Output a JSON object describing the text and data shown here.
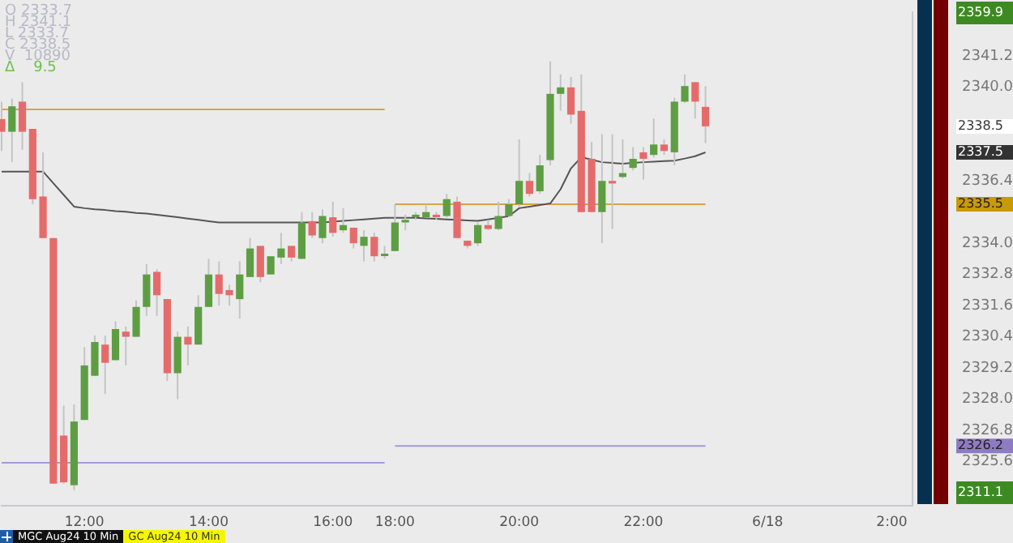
{
  "chart_data": {
    "type": "candlestick",
    "categories": [
      null,
      null,
      null,
      null,
      null,
      null,
      null,
      null,
      "12:00",
      null,
      null,
      null,
      null,
      null,
      null,
      null,
      null,
      null,
      null,
      null,
      "14:00",
      null,
      null,
      null,
      null,
      null,
      null,
      null,
      null,
      null,
      null,
      null,
      "16:00",
      null,
      null,
      null,
      null,
      null,
      "18:00",
      null,
      null,
      null,
      null,
      null,
      null,
      null,
      null,
      null,
      null,
      null,
      "20:00",
      null,
      null,
      null,
      null,
      null,
      null,
      null,
      null,
      null,
      null,
      null,
      "22:00",
      null,
      null,
      null,
      null,
      null,
      null,
      null,
      null,
      null,
      null,
      null,
      "6/18",
      null,
      null,
      null,
      null,
      null,
      null,
      null,
      null,
      null,
      null,
      null,
      "2:00",
      null,
      null
    ],
    "ohlc": [
      [
        2338.78,
        2339.45,
        2337.55,
        2338.29
      ],
      [
        2338.29,
        2339.57,
        2337.12,
        2339.27
      ],
      [
        2339.45,
        2340.2,
        2337.6,
        2338.29
      ],
      [
        2338.4,
        2338.4,
        2335.5,
        2335.7
      ],
      [
        2335.8,
        2337.5,
        2334.2,
        2334.2
      ],
      [
        2334.2,
        2334.2,
        2324.75,
        2324.75
      ],
      [
        2326.6,
        2327.75,
        2324.75,
        2324.8
      ],
      [
        2324.69,
        2327.8,
        2324.5,
        2327.14
      ],
      [
        2327.2,
        2330.0,
        2327.2,
        2329.3
      ],
      [
        2328.9,
        2330.45,
        2328.9,
        2330.2
      ],
      [
        2330.1,
        2330.45,
        2328.2,
        2329.4
      ],
      [
        2329.5,
        2331.0,
        2329.5,
        2330.7
      ],
      [
        2330.6,
        2330.8,
        2329.3,
        2330.4
      ],
      [
        2330.4,
        2331.8,
        2330.4,
        2331.55
      ],
      [
        2331.55,
        2333.2,
        2331.2,
        2332.8
      ],
      [
        2332.9,
        2333.0,
        2331.2,
        2332.0
      ],
      [
        2331.85,
        2331.85,
        2328.7,
        2329.0
      ],
      [
        2329.0,
        2330.6,
        2328.0,
        2330.4
      ],
      [
        2330.4,
        2330.8,
        2329.3,
        2330.1
      ],
      [
        2330.1,
        2332.0,
        2330.1,
        2331.55
      ],
      [
        2331.55,
        2333.4,
        2331.55,
        2332.8
      ],
      [
        2332.8,
        2333.3,
        2331.6,
        2332.05
      ],
      [
        2332.2,
        2332.4,
        2331.6,
        2332.0
      ],
      [
        2331.85,
        2333.3,
        2331.1,
        2332.8
      ],
      [
        2332.7,
        2334.2,
        2332.7,
        2333.8
      ],
      [
        2333.9,
        2333.9,
        2332.5,
        2332.7
      ],
      [
        2332.8,
        2333.5,
        2332.8,
        2333.5
      ],
      [
        2333.45,
        2334.4,
        2333.2,
        2333.8
      ],
      [
        2333.9,
        2333.9,
        2333.3,
        2333.45
      ],
      [
        2333.4,
        2335.2,
        2333.4,
        2334.8
      ],
      [
        2334.85,
        2335.2,
        2334.2,
        2334.3
      ],
      [
        2334.2,
        2335.3,
        2334.0,
        2335.05
      ],
      [
        2335.0,
        2335.6,
        2334.25,
        2334.4
      ],
      [
        2334.5,
        2335.35,
        2334.4,
        2334.7
      ],
      [
        2334.6,
        2334.6,
        2333.8,
        2334.0
      ],
      [
        2333.9,
        2334.5,
        2333.3,
        2334.25
      ],
      [
        2334.25,
        2334.4,
        2333.3,
        2333.5
      ],
      [
        2333.55,
        2333.9,
        2333.4,
        2333.6
      ],
      [
        2333.7,
        2335.5,
        2333.7,
        2334.8
      ],
      [
        2334.8,
        2335.1,
        2334.5,
        2334.9
      ],
      [
        2335.0,
        2335.2,
        2334.9,
        2335.1
      ],
      [
        2335.0,
        2335.5,
        2335.0,
        2335.2
      ],
      [
        2335.1,
        2335.2,
        2334.9,
        2335.0
      ],
      [
        2335.05,
        2335.9,
        2335.0,
        2335.7
      ],
      [
        2335.6,
        2335.8,
        2334.2,
        2334.2
      ],
      [
        2334.1,
        2334.1,
        2333.8,
        2333.9
      ],
      [
        2334.0,
        2334.8,
        2333.9,
        2334.7
      ],
      [
        2334.7,
        2334.9,
        2334.5,
        2334.55
      ],
      [
        2334.55,
        2335.6,
        2334.5,
        2335.05
      ],
      [
        2335.05,
        2335.7,
        2335.0,
        2335.5
      ],
      [
        2335.5,
        2338.0,
        2335.4,
        2336.4
      ],
      [
        2336.4,
        2336.7,
        2335.8,
        2335.9
      ],
      [
        2336.0,
        2337.4,
        2335.9,
        2337.0
      ],
      [
        2337.2,
        2341.0,
        2337.0,
        2339.75
      ],
      [
        2339.75,
        2340.5,
        2339.1,
        2340.0
      ],
      [
        2340.0,
        2340.4,
        2338.6,
        2338.95
      ],
      [
        2339.1,
        2340.5,
        2335.2,
        2335.2
      ],
      [
        2337.25,
        2337.9,
        2335.2,
        2335.2
      ],
      [
        2335.2,
        2338.2,
        2334.0,
        2336.4
      ],
      [
        2336.4,
        2338.2,
        2334.55,
        2336.3
      ],
      [
        2336.55,
        2338.0,
        2336.5,
        2336.7
      ],
      [
        2336.9,
        2337.7,
        2336.8,
        2337.25
      ],
      [
        2337.5,
        2337.7,
        2336.45,
        2337.25
      ],
      [
        2337.4,
        2338.8,
        2337.3,
        2337.8
      ],
      [
        2337.8,
        2338.0,
        2337.4,
        2337.55
      ],
      [
        2337.5,
        2339.6,
        2337.0,
        2339.45
      ],
      [
        2339.45,
        2340.5,
        2339.4,
        2340.05
      ],
      [
        2340.2,
        2340.2,
        2338.8,
        2339.45
      ],
      [
        2339.25,
        2340.05,
        2337.85,
        2338.5
      ],
      null,
      null,
      null,
      null,
      null,
      null,
      null,
      null,
      null,
      null,
      null,
      null,
      null,
      null,
      null,
      null,
      null,
      null,
      null,
      null
    ],
    "colors": [
      "#e56b6b",
      "#5e9e43",
      "#e56b6b",
      "#e56b6b",
      "#e56b6b",
      "#e56b6b",
      "#e56b6b",
      "#5e9e43",
      "#5e9e43",
      "#5e9e43",
      "#e56b6b",
      "#5e9e43",
      "#e56b6b",
      "#5e9e43",
      "#5e9e43",
      "#e56b6b",
      "#e56b6b",
      "#5e9e43",
      "#e56b6b",
      "#5e9e43",
      "#5e9e43",
      "#e56b6b",
      "#e56b6b",
      "#5e9e43",
      "#5e9e43",
      "#e56b6b",
      "#5e9e43",
      "#5e9e43",
      "#e56b6b",
      "#5e9e43",
      "#e56b6b",
      "#5e9e43",
      "#e56b6b",
      "#5e9e43",
      "#e56b6b",
      "#5e9e43",
      "#e56b6b",
      "#5e9e43",
      "#5e9e43",
      "#5e9e43",
      "#5e9e43",
      "#5e9e43",
      "#e56b6b",
      "#5e9e43",
      "#e56b6b",
      "#e56b6b",
      "#5e9e43",
      "#e56b6b",
      "#5e9e43",
      "#5e9e43",
      "#5e9e43",
      "#e56b6b",
      "#5e9e43",
      "#5e9e43",
      "#5e9e43",
      "#e56b6b",
      "#e56b6b",
      "#e56b6b",
      "#5e9e43",
      "#e56b6b",
      "#5e9e43",
      "#5e9e43",
      "#e56b6b",
      "#5e9e43",
      "#e56b6b",
      "#5e9e43",
      "#5e9e43",
      "#e56b6b",
      "#e56b6b",
      null,
      null,
      null,
      null,
      null,
      null,
      null,
      null,
      null,
      null,
      null,
      null,
      null,
      null,
      null,
      null,
      null,
      null,
      null,
      null
    ],
    "series": [
      {
        "type": "line",
        "color": "#555555",
        "values": [
          2336.76,
          2336.76,
          2336.76,
          2336.76,
          2336.76,
          2336.31,
          2335.86,
          2335.41,
          2335.35,
          2335.31,
          2335.28,
          2335.24,
          2335.21,
          2335.17,
          2335.14,
          2335.1,
          2335.05,
          2335.0,
          2334.95,
          2334.9,
          2334.85,
          2334.8,
          2334.8,
          2334.8,
          2334.8,
          2334.8,
          2334.8,
          2334.8,
          2334.8,
          2334.8,
          2334.8,
          2334.8,
          2334.83,
          2334.86,
          2334.89,
          2334.92,
          2334.95,
          2334.98,
          2334.98,
          2334.98,
          2334.98,
          2334.96,
          2334.94,
          2334.92,
          2334.9,
          2334.88,
          2334.86,
          2334.92,
          2334.98,
          2335.04,
          2335.35,
          2335.41,
          2335.47,
          2335.53,
          2336.08,
          2336.88,
          2337.31,
          2337.22,
          2337.12,
          2337.09,
          2337.06,
          2337.09,
          2337.12,
          2337.14,
          2337.16,
          2337.18,
          2337.26,
          2337.35,
          2337.5,
          null,
          null,
          null,
          null,
          null,
          null,
          null,
          null,
          null,
          null,
          null,
          null,
          null,
          null,
          null,
          null,
          null,
          null,
          null,
          null
        ]
      },
      {
        "type": "line",
        "color": "#d8a445",
        "values": [
          2339.15,
          2339.15,
          2339.15,
          2339.15,
          2339.15,
          2339.15,
          2339.15,
          2339.15,
          2339.15,
          2339.15,
          2339.15,
          2339.15,
          2339.15,
          2339.15,
          2339.15,
          2339.15,
          2339.15,
          2339.15,
          2339.15,
          2339.15,
          2339.15,
          2339.15,
          2339.15,
          2339.15,
          2339.15,
          2339.15,
          2339.15,
          2339.15,
          2339.15,
          2339.15,
          2339.15,
          2339.15,
          2339.15,
          2339.15,
          2339.15,
          2339.15,
          2339.15,
          2339.15,
          null,
          null,
          null,
          null,
          null,
          null,
          null,
          null,
          null,
          null,
          null,
          null,
          null,
          null,
          null,
          null,
          null,
          null,
          null,
          null,
          null,
          null,
          null,
          null,
          null,
          null,
          null,
          null,
          null,
          null,
          null,
          null,
          null,
          null,
          null,
          null,
          null,
          null,
          null,
          null,
          null,
          null,
          null,
          null,
          null,
          null,
          null,
          null,
          null,
          null,
          null
        ]
      },
      {
        "type": "line",
        "color": "#d8a445",
        "values": [
          null,
          null,
          null,
          null,
          null,
          null,
          null,
          null,
          null,
          null,
          null,
          null,
          null,
          null,
          null,
          null,
          null,
          null,
          null,
          null,
          null,
          null,
          null,
          null,
          null,
          null,
          null,
          null,
          null,
          null,
          null,
          null,
          null,
          null,
          null,
          null,
          null,
          null,
          2335.5,
          2335.5,
          2335.5,
          2335.5,
          2335.5,
          2335.5,
          2335.5,
          2335.5,
          2335.5,
          2335.5,
          2335.5,
          2335.5,
          2335.5,
          2335.5,
          2335.5,
          2335.5,
          2335.5,
          2335.5,
          2335.5,
          2335.5,
          2335.5,
          2335.5,
          2335.5,
          2335.5,
          2335.5,
          2335.5,
          2335.5,
          2335.5,
          2335.5,
          2335.5,
          2335.5,
          null,
          null,
          null,
          null,
          null,
          null,
          null,
          null,
          null,
          null,
          null,
          null,
          null,
          null,
          null,
          null,
          null,
          null,
          null,
          null
        ]
      },
      {
        "type": "line",
        "color": "#a49ad6",
        "values": [
          2325.55,
          2325.55,
          2325.55,
          2325.55,
          2325.55,
          2325.55,
          2325.55,
          2325.55,
          2325.55,
          2325.55,
          2325.55,
          2325.55,
          2325.55,
          2325.55,
          2325.55,
          2325.55,
          2325.55,
          2325.55,
          2325.55,
          2325.55,
          2325.55,
          2325.55,
          2325.55,
          2325.55,
          2325.55,
          2325.55,
          2325.55,
          2325.55,
          2325.55,
          2325.55,
          2325.55,
          2325.55,
          2325.55,
          2325.55,
          2325.55,
          2325.55,
          2325.55,
          2325.55,
          null,
          null,
          null,
          null,
          null,
          null,
          null,
          null,
          null,
          null,
          null,
          null,
          null,
          null,
          null,
          null,
          null,
          null,
          null,
          null,
          null,
          null,
          null,
          null,
          null,
          null,
          null,
          null,
          null,
          null,
          null,
          null,
          null,
          null,
          null,
          null,
          null,
          null,
          null,
          null,
          null,
          null,
          null,
          null,
          null,
          null,
          null,
          null,
          null,
          null,
          null
        ]
      },
      {
        "type": "line",
        "color": "#a49ad6",
        "values": [
          null,
          null,
          null,
          null,
          null,
          null,
          null,
          null,
          null,
          null,
          null,
          null,
          null,
          null,
          null,
          null,
          null,
          null,
          null,
          null,
          null,
          null,
          null,
          null,
          null,
          null,
          null,
          null,
          null,
          null,
          null,
          null,
          null,
          null,
          null,
          null,
          null,
          null,
          2326.2,
          2326.2,
          2326.2,
          2326.2,
          2326.2,
          2326.2,
          2326.2,
          2326.2,
          2326.2,
          2326.2,
          2326.2,
          2326.2,
          2326.2,
          2326.2,
          2326.2,
          2326.2,
          2326.2,
          2326.2,
          2326.2,
          2326.2,
          2326.2,
          2326.2,
          2326.2,
          2326.2,
          2326.2,
          2326.2,
          2326.2,
          2326.2,
          2326.2,
          2326.2,
          2326.2,
          null,
          null,
          null,
          null,
          null,
          null,
          null,
          null,
          null,
          null,
          null,
          null,
          null,
          null,
          null,
          null,
          null,
          null,
          null,
          null
        ]
      }
    ],
    "ylim": [
      2323.9,
      2342.9
    ],
    "yticks": [
      2325.6,
      2326.8,
      {
        "value": 2328,
        "label": "2328.0"
      },
      2329.2,
      2330.4,
      2331.6,
      2332.8,
      {
        "value": 2334,
        "label": "2334.0"
      },
      2336.4,
      {
        "value": 2340,
        "label": "2340.0"
      },
      2341.2
    ],
    "grid": false,
    "legend": false,
    "annotations": [
      "O 2333.7",
      "H 2341.1",
      "L 2333.7",
      "C 2338.5",
      "V  10890",
      "Δ    9.5",
      "2359.9",
      "2311.1",
      "MGC Aug24 10 Min",
      "GC Aug24 10 Min",
      "2338.5",
      "2337.5",
      "2335.5",
      "2326.2"
    ]
  }
}
